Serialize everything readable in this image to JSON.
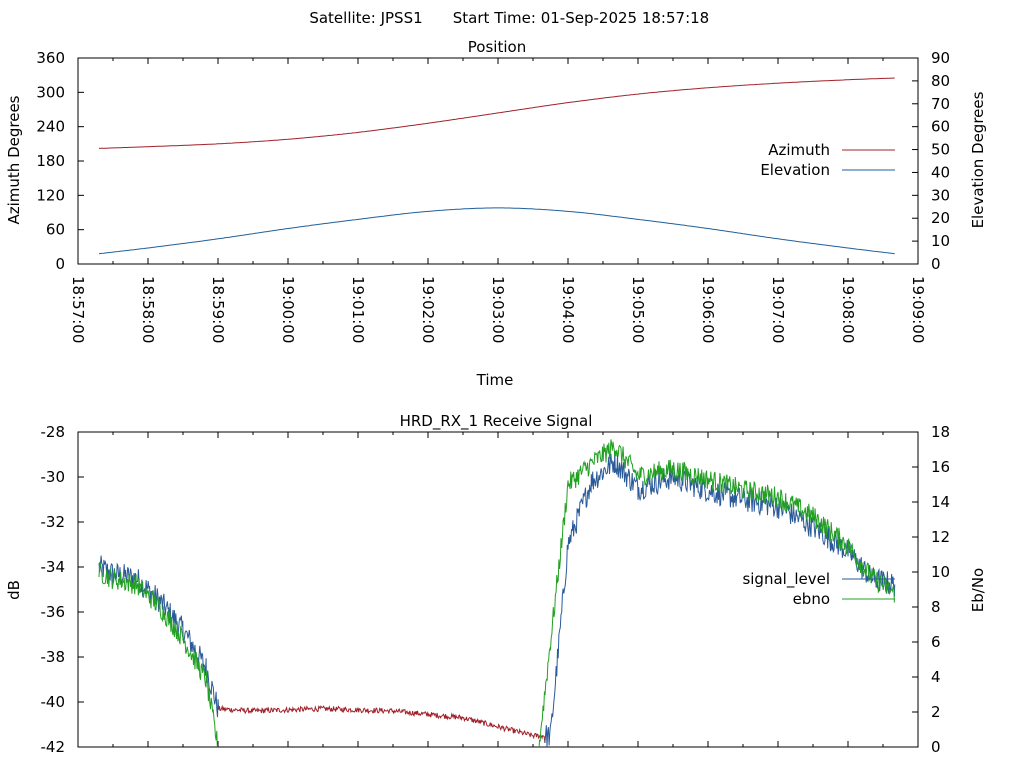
{
  "header": {
    "satellite_label": "Satellite: JPSS1",
    "start_time_label": "Start Time: 01-Sep-2025 18:57:18"
  },
  "colors": {
    "azimuth": "#a0202a",
    "elevation": "#1f5f9a",
    "signal_level": "#2a5a9a",
    "ebno": "#22a022",
    "signal_lowband": "#a0202a"
  },
  "chart_data": [
    {
      "type": "line",
      "title": "Position",
      "xlabel": "Time",
      "ylabel": "Azimuth Degrees",
      "y2label": "Elevation Degrees",
      "xlim": [
        "18:57:00",
        "19:09:00"
      ],
      "x_ticks": [
        "18:57:00",
        "18:58:00",
        "18:59:00",
        "19:00:00",
        "19:01:00",
        "19:02:00",
        "19:03:00",
        "19:04:00",
        "19:05:00",
        "19:06:00",
        "19:07:00",
        "19:08:00",
        "19:09:00"
      ],
      "ylim": [
        0,
        360
      ],
      "y_ticks": [
        "0",
        "60",
        "120",
        "180",
        "240",
        "300",
        "360"
      ],
      "y2lim": [
        0,
        90
      ],
      "y2_ticks": [
        "0",
        "10",
        "20",
        "30",
        "40",
        "50",
        "60",
        "70",
        "80",
        "90"
      ],
      "legend_position": "right",
      "grid": false,
      "series": [
        {
          "name": "Azimuth",
          "axis": "y",
          "x": [
            "18:57:18",
            "18:58:00",
            "18:59:00",
            "19:00:00",
            "19:01:00",
            "19:02:00",
            "19:03:00",
            "19:04:00",
            "19:05:00",
            "19:06:00",
            "19:07:00",
            "19:08:00",
            "19:08:40"
          ],
          "values": [
            202,
            205,
            210,
            218,
            230,
            246,
            264,
            282,
            297,
            308,
            316,
            322,
            325
          ]
        },
        {
          "name": "Elevation",
          "axis": "y2",
          "x": [
            "18:57:18",
            "18:58:00",
            "18:59:00",
            "19:00:00",
            "19:01:00",
            "19:02:00",
            "19:03:00",
            "19:04:00",
            "19:05:00",
            "19:06:00",
            "19:07:00",
            "19:08:00",
            "19:08:40"
          ],
          "values": [
            4.5,
            7,
            11,
            15.5,
            19.5,
            23,
            24.5,
            23,
            19.5,
            15.5,
            11,
            7,
            4.5
          ]
        }
      ]
    },
    {
      "type": "line",
      "title": "HRD_RX_1 Receive Signal",
      "ylabel": "dB",
      "y2label": "Eb/No",
      "xlim": [
        "18:57:00",
        "19:09:00"
      ],
      "ylim": [
        -42,
        -28
      ],
      "y_ticks": [
        "-42",
        "-40",
        "-38",
        "-36",
        "-34",
        "-32",
        "-30",
        "-28"
      ],
      "y2lim": [
        0,
        18
      ],
      "y2_ticks": [
        "0",
        "2",
        "4",
        "6",
        "8",
        "10",
        "12",
        "14",
        "16",
        "18"
      ],
      "legend_position": "right",
      "grid": false,
      "series": [
        {
          "name": "signal_level",
          "axis": "y",
          "x": [
            "18:57:18",
            "18:57:30",
            "18:57:50",
            "18:58:10",
            "18:58:30",
            "18:58:50",
            "18:59:00",
            "18:59:30",
            "19:00:30",
            "19:01:30",
            "19:02:30",
            "19:03:30",
            "19:03:45",
            "19:04:00",
            "19:04:20",
            "19:04:40",
            "19:05:00",
            "19:05:30",
            "19:06:00",
            "19:06:30",
            "19:07:00",
            "19:07:30",
            "19:08:00",
            "19:08:20",
            "19:08:40"
          ],
          "values": [
            -34.0,
            -34.3,
            -34.5,
            -35.5,
            -36.8,
            -38.5,
            -40.3,
            -40.4,
            -40.3,
            -40.4,
            -40.7,
            -41.5,
            -41.5,
            -33.0,
            -30.2,
            -29.3,
            -30.5,
            -30.0,
            -30.6,
            -31.0,
            -31.3,
            -32.2,
            -33.3,
            -34.5,
            -34.8
          ]
        },
        {
          "name": "ebno",
          "axis": "y2",
          "x": [
            "18:57:18",
            "18:57:30",
            "18:57:50",
            "18:58:10",
            "18:58:30",
            "18:58:50",
            "18:59:00",
            "19:03:35",
            "19:03:45",
            "19:04:00",
            "19:04:20",
            "19:04:40",
            "19:05:00",
            "19:05:30",
            "19:06:00",
            "19:06:30",
            "19:07:00",
            "19:07:30",
            "19:08:00",
            "19:08:20",
            "19:08:40"
          ],
          "values": [
            10.0,
            9.6,
            9.3,
            8.0,
            6.2,
            3.8,
            0.0,
            0.0,
            6.0,
            15.0,
            16.2,
            17.2,
            15.5,
            15.9,
            15.3,
            14.7,
            14.3,
            13.2,
            11.5,
            9.7,
            8.8
          ]
        }
      ]
    }
  ]
}
